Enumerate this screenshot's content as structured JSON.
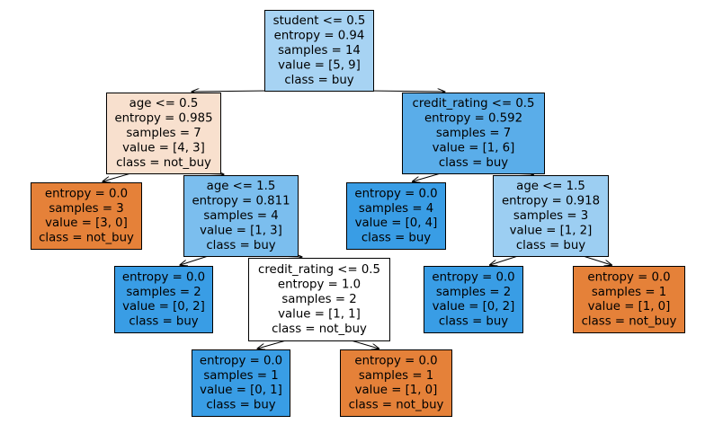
{
  "tree": {
    "colors": {
      "buy_strong": "#399de5",
      "buy_mid": "#5aade9",
      "buy_light": "#7bbeee",
      "buy_pale": "#9ccef2",
      "buy_faint": "#a7d3f3",
      "not_buy_strong": "#e58139",
      "not_buy_pale": "#f8e0ce",
      "neutral": "#ffffff"
    },
    "nodes": [
      {
        "id": "n0",
        "color": "buy_faint",
        "lines": [
          "student <= 0.5",
          "entropy = 0.94",
          "samples = 14",
          "value = [5, 9]",
          "class = buy"
        ]
      },
      {
        "id": "n1",
        "color": "not_buy_pale",
        "lines": [
          "age <= 0.5",
          "entropy = 0.985",
          "samples = 7",
          "value = [4, 3]",
          "class = not_buy"
        ]
      },
      {
        "id": "n2",
        "color": "not_buy_strong",
        "lines": [
          "entropy = 0.0",
          "samples = 3",
          "value = [3, 0]",
          "class = not_buy"
        ]
      },
      {
        "id": "n3",
        "color": "buy_light",
        "lines": [
          "age <= 1.5",
          "entropy = 0.811",
          "samples = 4",
          "value = [1, 3]",
          "class = buy"
        ]
      },
      {
        "id": "n4",
        "color": "buy_strong",
        "lines": [
          "entropy = 0.0",
          "samples = 2",
          "value = [0, 2]",
          "class = buy"
        ]
      },
      {
        "id": "n5",
        "color": "neutral",
        "lines": [
          "credit_rating <= 0.5",
          "entropy = 1.0",
          "samples = 2",
          "value = [1, 1]",
          "class = not_buy"
        ]
      },
      {
        "id": "n6",
        "color": "buy_strong",
        "lines": [
          "entropy = 0.0",
          "samples = 1",
          "value = [0, 1]",
          "class = buy"
        ]
      },
      {
        "id": "n7",
        "color": "not_buy_strong",
        "lines": [
          "entropy = 0.0",
          "samples = 1",
          "value = [1, 0]",
          "class = not_buy"
        ]
      },
      {
        "id": "n8",
        "color": "buy_mid",
        "lines": [
          "credit_rating <= 0.5",
          "entropy = 0.592",
          "samples = 7",
          "value = [1, 6]",
          "class = buy"
        ]
      },
      {
        "id": "n9",
        "color": "buy_strong",
        "lines": [
          "entropy = 0.0",
          "samples = 4",
          "value = [0, 4]",
          "class = buy"
        ]
      },
      {
        "id": "n10",
        "color": "buy_pale",
        "lines": [
          "age <= 1.5",
          "entropy = 0.918",
          "samples = 3",
          "value = [1, 2]",
          "class = buy"
        ]
      },
      {
        "id": "n11",
        "color": "buy_strong",
        "lines": [
          "entropy = 0.0",
          "samples = 2",
          "value = [0, 2]",
          "class = buy"
        ]
      },
      {
        "id": "n12",
        "color": "not_buy_strong",
        "lines": [
          "entropy = 0.0",
          "samples = 1",
          "value = [1, 0]",
          "class = not_buy"
        ]
      }
    ],
    "edges": [
      [
        "n0",
        "n1"
      ],
      [
        "n1",
        "n2"
      ],
      [
        "n1",
        "n3"
      ],
      [
        "n3",
        "n4"
      ],
      [
        "n3",
        "n5"
      ],
      [
        "n5",
        "n6"
      ],
      [
        "n5",
        "n7"
      ],
      [
        "n0",
        "n8"
      ],
      [
        "n8",
        "n9"
      ],
      [
        "n8",
        "n10"
      ],
      [
        "n10",
        "n11"
      ],
      [
        "n10",
        "n12"
      ]
    ]
  }
}
